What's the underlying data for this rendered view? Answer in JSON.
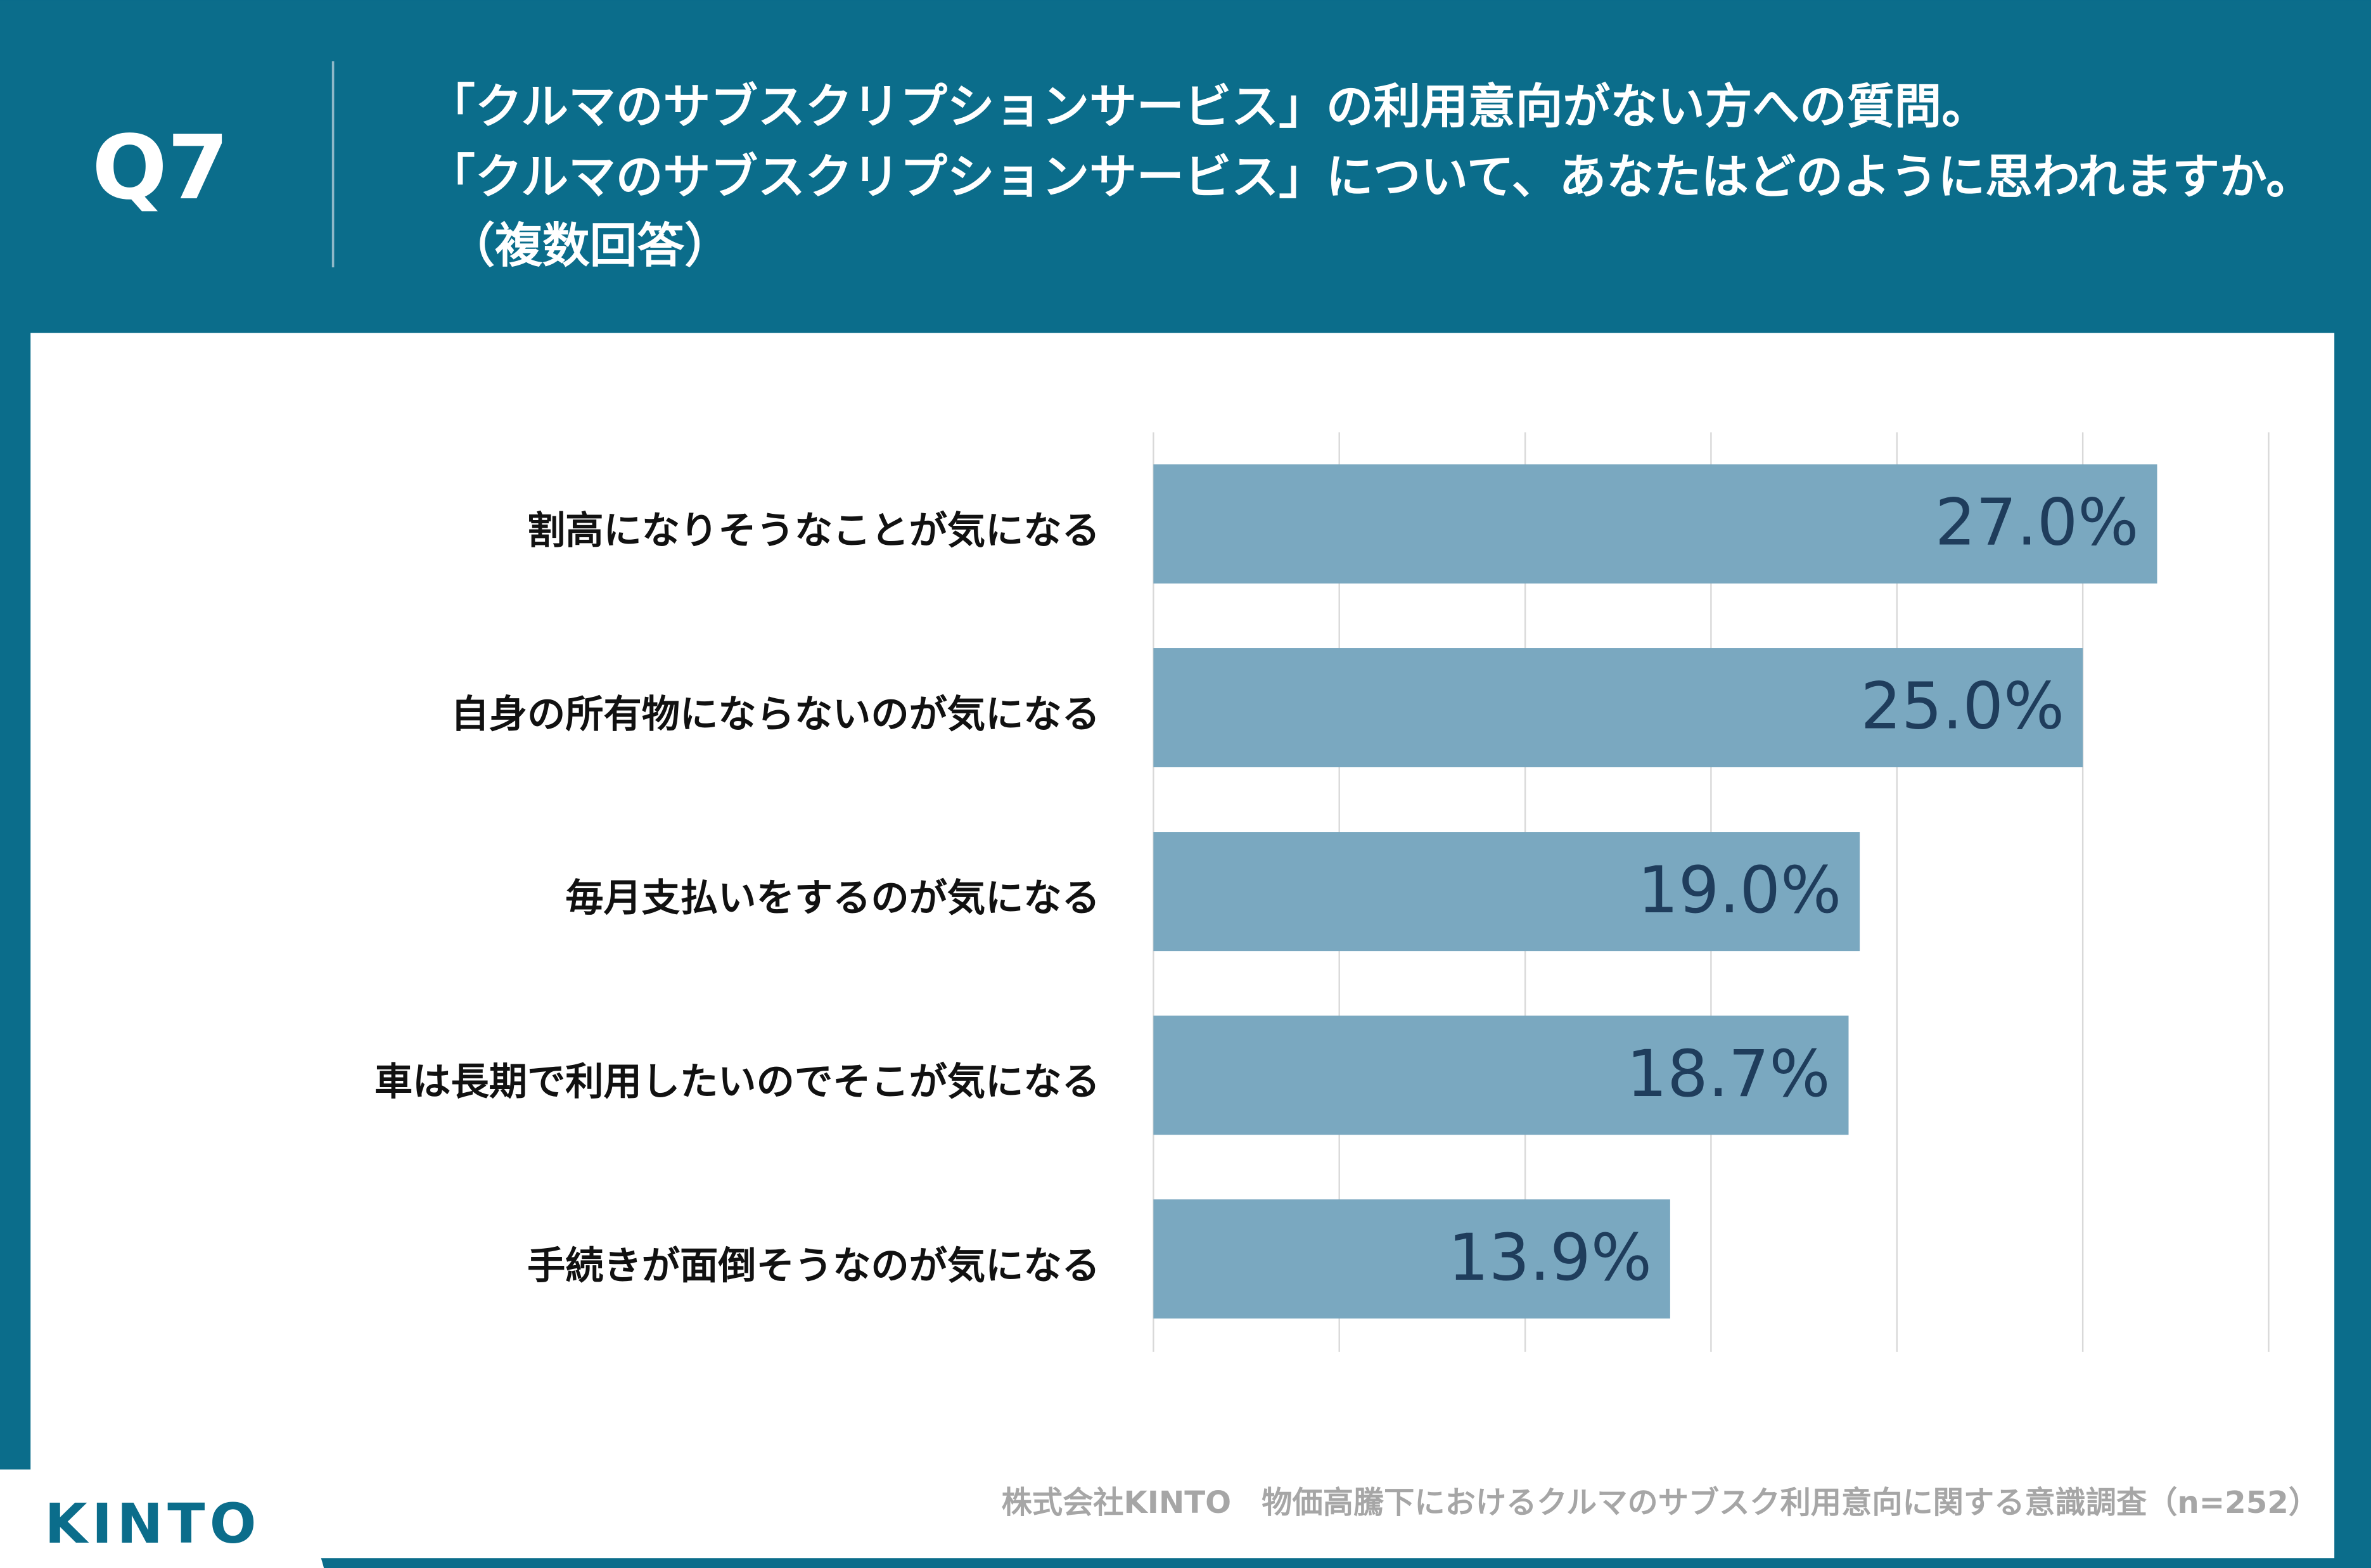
{
  "chart_data": {
    "type": "hbar",
    "question_label": "Q7",
    "title": [
      "「クルマのサブスクリプションサービス」の利用意向がない方への質問。",
      "「クルマのサブスクリプションサービス」について、あなたはどのように思われますか。",
      "（複数回答）"
    ],
    "categories": [
      "割高になりそうなことが気になる",
      "自身の所有物にならないのが気になる",
      "毎月支払いをするのが気になる",
      "車は長期で利用したいのでそこが気になる",
      "手続きが面倒そうなのが気になる"
    ],
    "values": [
      27.0,
      25.0,
      19.0,
      18.7,
      13.9
    ],
    "value_labels": [
      "27.0%",
      "25.0%",
      "19.0%",
      "18.7%",
      "13.9%"
    ],
    "color": "#7aa8c0",
    "xlim": [
      0,
      30
    ],
    "xticks": [
      0,
      5,
      10,
      15,
      20,
      25,
      30
    ],
    "grid": true,
    "source": "株式会社KINTO　物価高騰下におけるクルマのサブスク利用意向に関する意識調査（n=252）",
    "logo": "KINTO"
  }
}
